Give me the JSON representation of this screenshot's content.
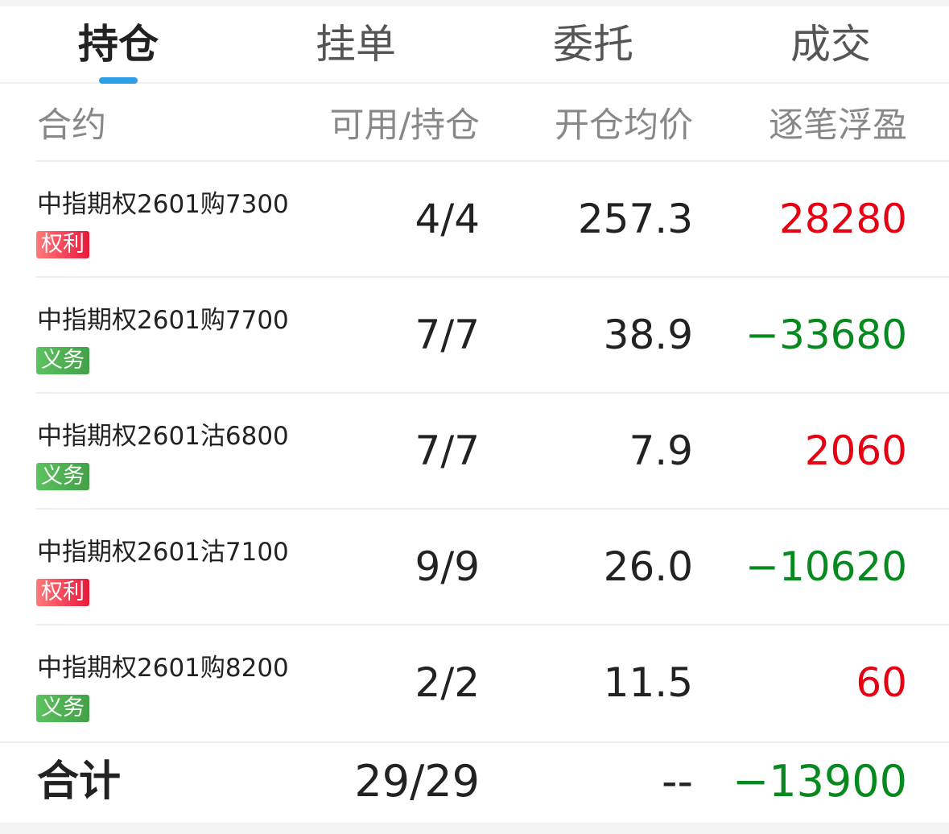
{
  "tabs": [
    "持仓",
    "挂单",
    "委托",
    "成交"
  ],
  "active_tab": 0,
  "colors": {
    "accent": "#2f9ee8",
    "profit": "#e60012",
    "loss": "#068a1f",
    "rights_badge": "#f0485a",
    "obligation_badge": "#4caf50"
  },
  "header": {
    "contract": "合约",
    "available": "可用/持仓",
    "avg_price": "开仓均价",
    "pnl": "逐笔浮盈"
  },
  "rows": [
    {
      "name": "中指期权2601购7300",
      "badge": "权利",
      "type": "rights",
      "qty": "4/4",
      "price": "257.3",
      "pnl": "28280",
      "dir": "profit"
    },
    {
      "name": "中指期权2601购7700",
      "badge": "义务",
      "type": "obligation",
      "qty": "7/7",
      "price": "38.9",
      "pnl": "−33680",
      "dir": "loss"
    },
    {
      "name": "中指期权2601沽6800",
      "badge": "义务",
      "type": "obligation",
      "qty": "7/7",
      "price": "7.9",
      "pnl": "2060",
      "dir": "profit"
    },
    {
      "name": "中指期权2601沽7100",
      "badge": "权利",
      "type": "rights",
      "qty": "9/9",
      "price": "26.0",
      "pnl": "−10620",
      "dir": "loss"
    },
    {
      "name": "中指期权2601购8200",
      "badge": "义务",
      "type": "obligation",
      "qty": "2/2",
      "price": "11.5",
      "pnl": "60",
      "dir": "profit"
    }
  ],
  "total": {
    "label": "合计",
    "qty": "29/29",
    "price": "--",
    "pnl": "−13900",
    "dir": "loss"
  }
}
